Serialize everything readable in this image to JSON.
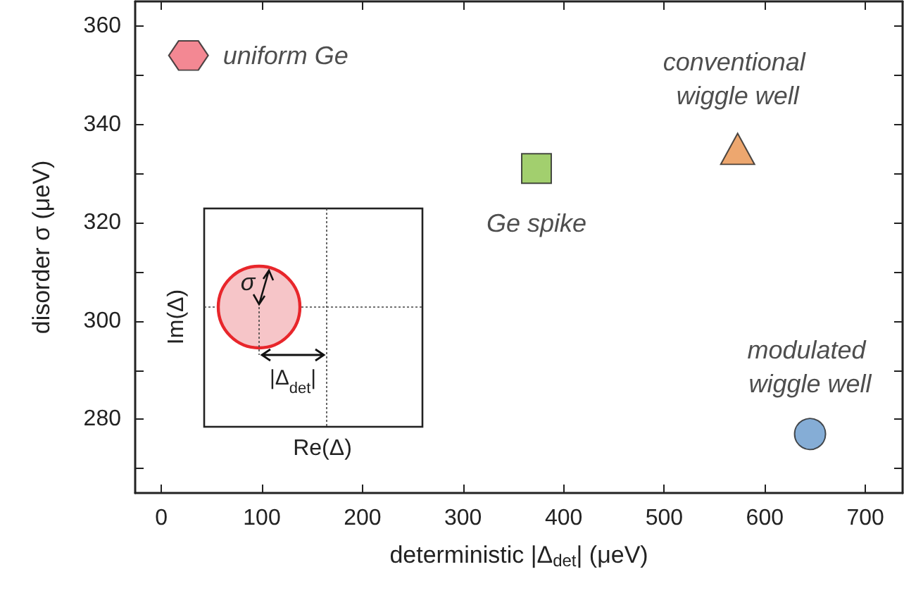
{
  "chart_data": {
    "type": "scatter",
    "xlabel": "deterministic |Δ$_{det}$| (μeV)",
    "ylabel": "disorder σ (μeV)",
    "xlim": [
      -26,
      737
    ],
    "xticks": [
      0,
      100,
      200,
      300,
      400,
      500,
      600,
      700
    ],
    "ylim": [
      265,
      365
    ],
    "yticks": [
      {
        "value": 270,
        "label": null
      },
      280,
      {
        "value": 290,
        "label": null
      },
      300,
      {
        "value": 310,
        "label": null
      },
      320,
      {
        "value": 330,
        "label": null
      },
      340,
      {
        "value": 350,
        "label": null
      },
      360
    ],
    "grid": false,
    "series": [
      {
        "name": "uniform Ge",
        "color": "#f06a78",
        "x": [
          27
        ],
        "values": [
          354
        ]
      },
      {
        "name": "Ge spike",
        "color": "#8bc34a",
        "marker": "square",
        "x": [
          373
        ],
        "values": [
          331
        ]
      },
      {
        "name": "conventional wiggle well",
        "color": "#e8914b",
        "marker": "triangle",
        "x": [
          573
        ],
        "values": [
          335
        ]
      },
      {
        "name": "modulated wiggle well",
        "color": "#6699cc",
        "marker": "circle",
        "x": [
          645
        ],
        "values": [
          277
        ]
      }
    ],
    "annotations": [
      "Im(Δ)",
      "Re(Δ)",
      "σ",
      "|Δ$_{det}$|"
    ]
  }
}
